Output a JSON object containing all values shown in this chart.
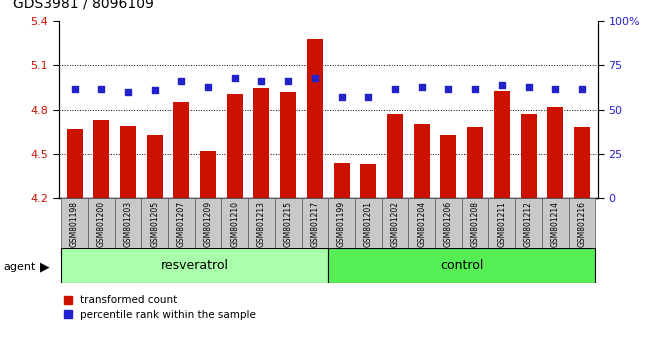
{
  "title": "GDS3981 / 8096109",
  "samples": [
    "GSM801198",
    "GSM801200",
    "GSM801203",
    "GSM801205",
    "GSM801207",
    "GSM801209",
    "GSM801210",
    "GSM801213",
    "GSM801215",
    "GSM801217",
    "GSM801199",
    "GSM801201",
    "GSM801202",
    "GSM801204",
    "GSM801206",
    "GSM801208",
    "GSM801211",
    "GSM801212",
    "GSM801214",
    "GSM801216"
  ],
  "bar_values": [
    4.67,
    4.73,
    4.69,
    4.63,
    4.85,
    4.52,
    4.91,
    4.95,
    4.92,
    5.28,
    4.44,
    4.43,
    4.77,
    4.7,
    4.63,
    4.68,
    4.93,
    4.77,
    4.82,
    4.68
  ],
  "percentile_values": [
    62,
    62,
    60,
    61,
    66,
    63,
    68,
    66,
    66,
    68,
    57,
    57,
    62,
    63,
    62,
    62,
    64,
    63,
    62,
    62
  ],
  "bar_color": "#cc1100",
  "dot_color": "#2222cc",
  "ylim_left": [
    4.2,
    5.4
  ],
  "ylim_right": [
    0,
    100
  ],
  "yticks_left": [
    4.2,
    4.5,
    4.8,
    5.1,
    5.4
  ],
  "yticks_right": [
    0,
    25,
    50,
    75,
    100
  ],
  "ytick_labels_right": [
    "0",
    "25",
    "50",
    "75",
    "100%"
  ],
  "grid_values": [
    4.5,
    4.8,
    5.1
  ],
  "agent_label": "agent",
  "resveratrol_label": "resveratrol",
  "control_label": "control",
  "legend_bar_label": "transformed count",
  "legend_dot_label": "percentile rank within the sample",
  "plot_bg_color": "#ffffff",
  "tick_label_bg": "#c8c8c8",
  "resveratrol_bg": "#aaffaa",
  "control_bg": "#55ee55",
  "bar_width": 0.6,
  "n_resveratrol": 10
}
